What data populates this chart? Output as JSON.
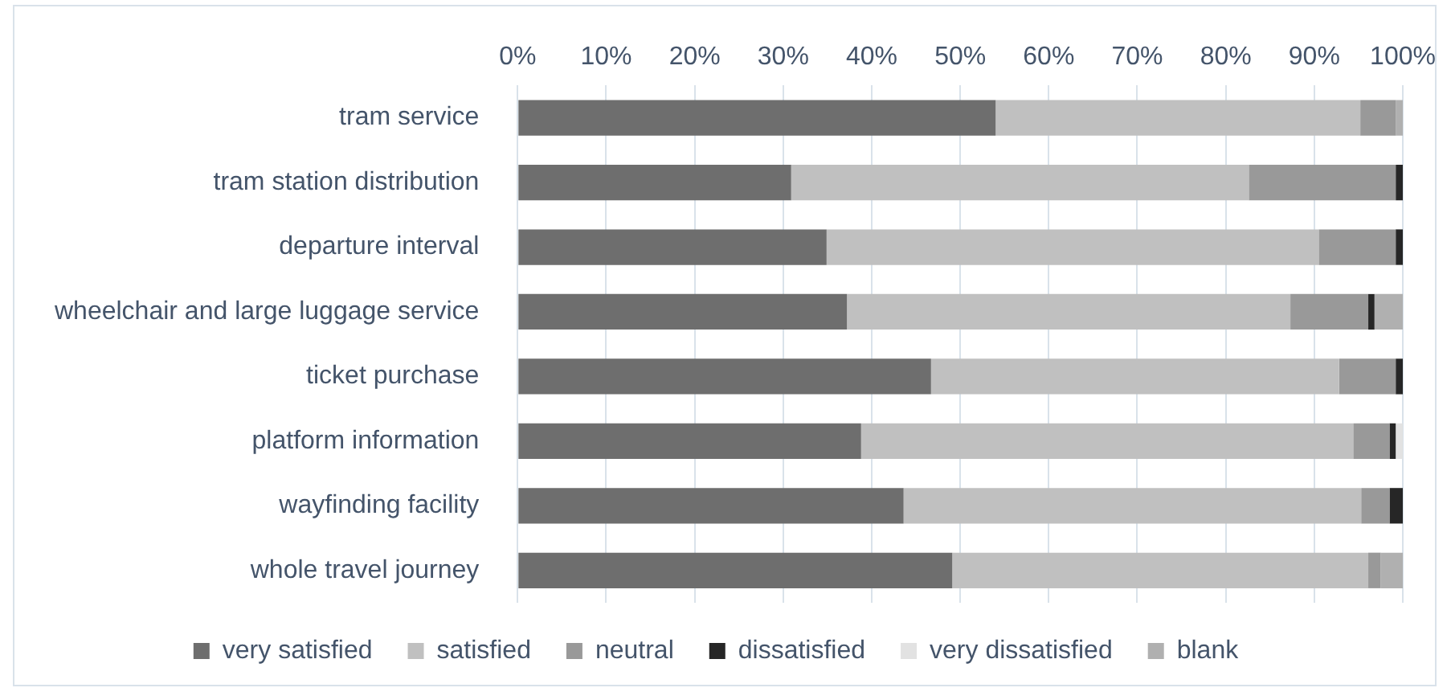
{
  "chart_data": {
    "type": "bar",
    "orientation": "horizontal",
    "stacked": true,
    "categories": [
      "tram service",
      "tram station distribution",
      "departure interval",
      "wheelchair and large luggage service",
      "ticket purchase",
      "platform information",
      "wayfinding facility",
      "whole travel journey"
    ],
    "series": [
      {
        "name": "very satisfied",
        "color": "#6e6e6e",
        "values": [
          54,
          30.9,
          34.9,
          37.2,
          46.7,
          38.8,
          43.6,
          49.1
        ]
      },
      {
        "name": "satisfied",
        "color": "#c0c0c0",
        "values": [
          41.2,
          51.7,
          55.6,
          50.1,
          46.1,
          55.6,
          51.7,
          47
        ]
      },
      {
        "name": "neutral",
        "color": "#999999",
        "values": [
          4,
          16.6,
          8.7,
          8.8,
          6.4,
          4.1,
          3.2,
          1.4
        ]
      },
      {
        "name": "dissatisfied",
        "color": "#262626",
        "values": [
          0,
          0.8,
          0.8,
          0.7,
          0.8,
          0.7,
          1.5,
          0
        ]
      },
      {
        "name": "very dissatisfied",
        "color": "#e2e2e2",
        "values": [
          0,
          0,
          0,
          0,
          0,
          0.8,
          0,
          0
        ]
      },
      {
        "name": "blank",
        "color": "#b0b0b0",
        "values": [
          0.8,
          0,
          0,
          3.2,
          0,
          0,
          0,
          2.5
        ]
      }
    ],
    "xlim": [
      0,
      100
    ],
    "xticks": [
      {
        "value": 0,
        "label": "0%"
      },
      {
        "value": 10,
        "label": "10%"
      },
      {
        "value": 20,
        "label": "20%"
      },
      {
        "value": 30,
        "label": "30%"
      },
      {
        "value": 40,
        "label": "40%"
      },
      {
        "value": 50,
        "label": "50%"
      },
      {
        "value": 60,
        "label": "60%"
      },
      {
        "value": 70,
        "label": "70%"
      },
      {
        "value": 80,
        "label": "80%"
      },
      {
        "value": 90,
        "label": "90%"
      },
      {
        "value": 100,
        "label": "100%"
      }
    ],
    "grid": "x",
    "legend": "bottom"
  }
}
